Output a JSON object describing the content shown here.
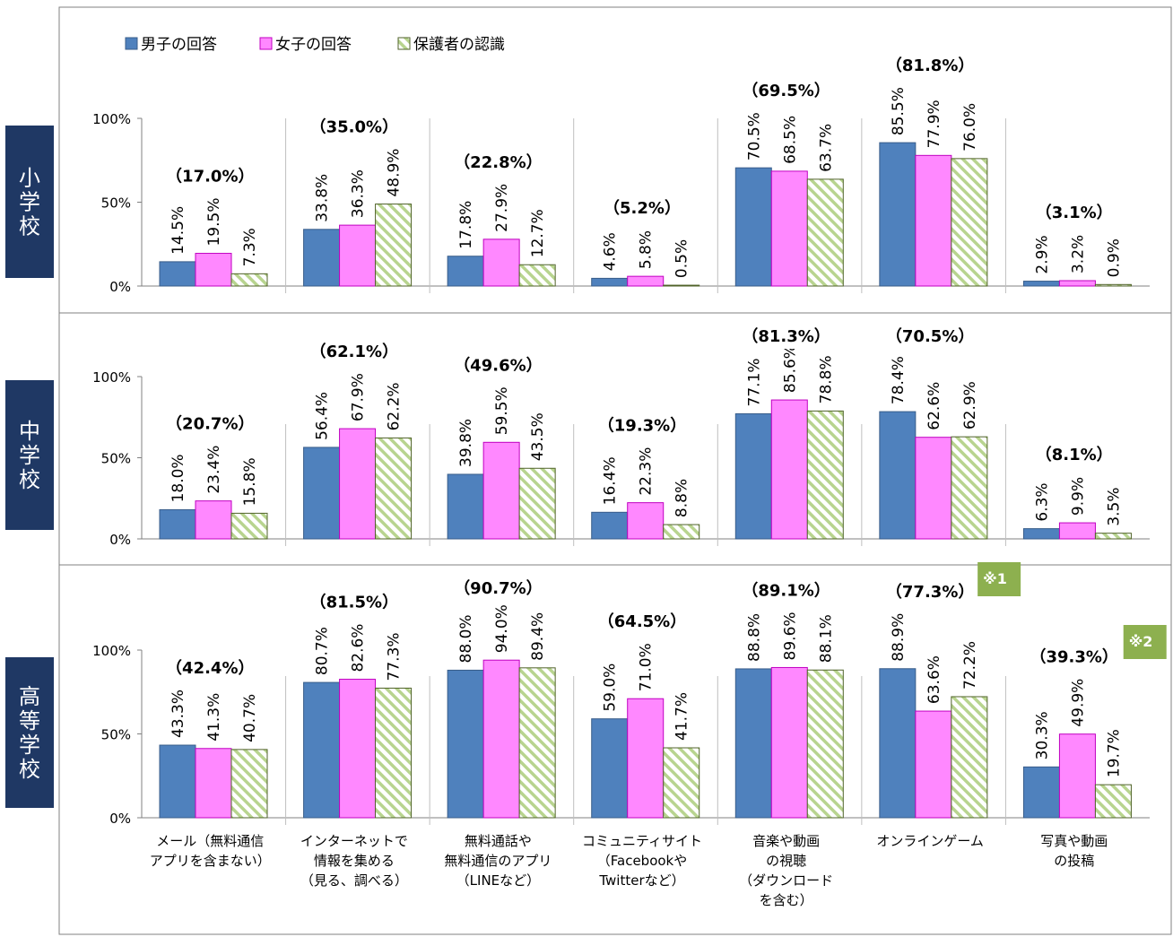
{
  "chart_data": {
    "type": "bar",
    "legend": [
      {
        "name": "男子の回答",
        "color": "#4f81bd",
        "pattern": "solid"
      },
      {
        "name": "女子の回答",
        "color": "#ff88ff",
        "pattern": "solid"
      },
      {
        "name": "保護者の認識",
        "color": "#9bbb59",
        "pattern": "hatched"
      }
    ],
    "categories": [
      [
        "メール（無料通信",
        "アプリを含まない）"
      ],
      [
        "インターネットで",
        "情報を集める",
        "（見る、調べる）"
      ],
      [
        "無料通話や",
        "無料通信のアプリ",
        "（LINEなど）"
      ],
      [
        "コミュニティサイト",
        "（Facebookや",
        "Twitterなど）"
      ],
      [
        "音楽や動画",
        "の視聴",
        "（ダウンロード",
        "を含む）"
      ],
      [
        "オンラインゲーム"
      ],
      [
        "写真や動画",
        "の投稿"
      ]
    ],
    "yticks": [
      "0%",
      "50%",
      "100%"
    ],
    "ylim": [
      0,
      100
    ],
    "panels": [
      {
        "school": "小学校",
        "totals": [
          "（17.0%）",
          "（35.0%）",
          "（22.8%）",
          "（5.2%）",
          "（69.5%）",
          "（81.8%）",
          "（3.1%）"
        ],
        "series": [
          {
            "name": "男子の回答",
            "values": [
              14.5,
              33.8,
              17.8,
              4.6,
              70.5,
              85.5,
              2.9
            ],
            "labels": [
              "14.5%",
              "33.8%",
              "17.8%",
              "4.6%",
              "70.5%",
              "85.5%",
              "2.9%"
            ]
          },
          {
            "name": "女子の回答",
            "values": [
              19.5,
              36.3,
              27.9,
              5.8,
              68.5,
              77.9,
              3.2
            ],
            "labels": [
              "19.5%",
              "36.3%",
              "27.9%",
              "5.8%",
              "68.5%",
              "77.9%",
              "3.2%"
            ]
          },
          {
            "name": "保護者の認識",
            "values": [
              7.3,
              48.9,
              12.7,
              0.5,
              63.7,
              76.0,
              0.9
            ],
            "labels": [
              "7.3%",
              "48.9%",
              "12.7%",
              "0.5%",
              "63.7%",
              "76.0%",
              "0.9%"
            ]
          }
        ]
      },
      {
        "school": "中学校",
        "totals": [
          "（20.7%）",
          "（62.1%）",
          "（49.6%）",
          "（19.3%）",
          "（81.3%）",
          "（70.5%）",
          "（8.1%）"
        ],
        "series": [
          {
            "name": "男子の回答",
            "values": [
              18.0,
              56.4,
              39.8,
              16.4,
              77.1,
              78.4,
              6.3
            ],
            "labels": [
              "18.0%",
              "56.4%",
              "39.8%",
              "16.4%",
              "77.1%",
              "78.4%",
              "6.3%"
            ]
          },
          {
            "name": "女子の回答",
            "values": [
              23.4,
              67.9,
              59.5,
              22.3,
              85.6,
              62.6,
              9.9
            ],
            "labels": [
              "23.4%",
              "67.9%",
              "59.5%",
              "22.3%",
              "85.6%",
              "62.6%",
              "9.9%"
            ]
          },
          {
            "name": "保護者の認識",
            "values": [
              15.8,
              62.2,
              43.5,
              8.8,
              78.8,
              62.9,
              3.5
            ],
            "labels": [
              "15.8%",
              "62.2%",
              "43.5%",
              "8.8%",
              "78.8%",
              "62.9%",
              "3.5%"
            ]
          }
        ]
      },
      {
        "school": "高等学校",
        "totals": [
          "（42.4%）",
          "（81.5%）",
          "（90.7%）",
          "（64.5%）",
          "（89.1%）",
          "（77.3%）",
          "（39.3%）"
        ],
        "series": [
          {
            "name": "男子の回答",
            "values": [
              43.3,
              80.7,
              88.0,
              59.0,
              88.8,
              88.9,
              30.3
            ],
            "labels": [
              "43.3%",
              "80.7%",
              "88.0%",
              "59.0%",
              "88.8%",
              "88.9%",
              "30.3%"
            ]
          },
          {
            "name": "女子の回答",
            "values": [
              41.3,
              82.6,
              94.0,
              71.0,
              89.6,
              63.6,
              49.9
            ],
            "labels": [
              "41.3%",
              "82.6%",
              "94.0%",
              "71.0%",
              "89.6%",
              "63.6%",
              "49.9%"
            ]
          },
          {
            "name": "保護者の認識",
            "values": [
              40.7,
              77.3,
              89.4,
              41.7,
              88.1,
              72.2,
              19.7
            ],
            "labels": [
              "40.7%",
              "77.3%",
              "89.4%",
              "41.7%",
              "88.1%",
              "72.2%",
              "19.7%"
            ]
          }
        ],
        "notes": [
          {
            "category_index": 5,
            "text": "※1"
          },
          {
            "category_index": 6,
            "text": "※2"
          }
        ]
      }
    ],
    "colors": {
      "boys": "#4f81bd",
      "girls": "#ff88ff",
      "parents": "#9bbb59",
      "school_box": "#1f3864",
      "note_box": "#8db04f"
    }
  }
}
